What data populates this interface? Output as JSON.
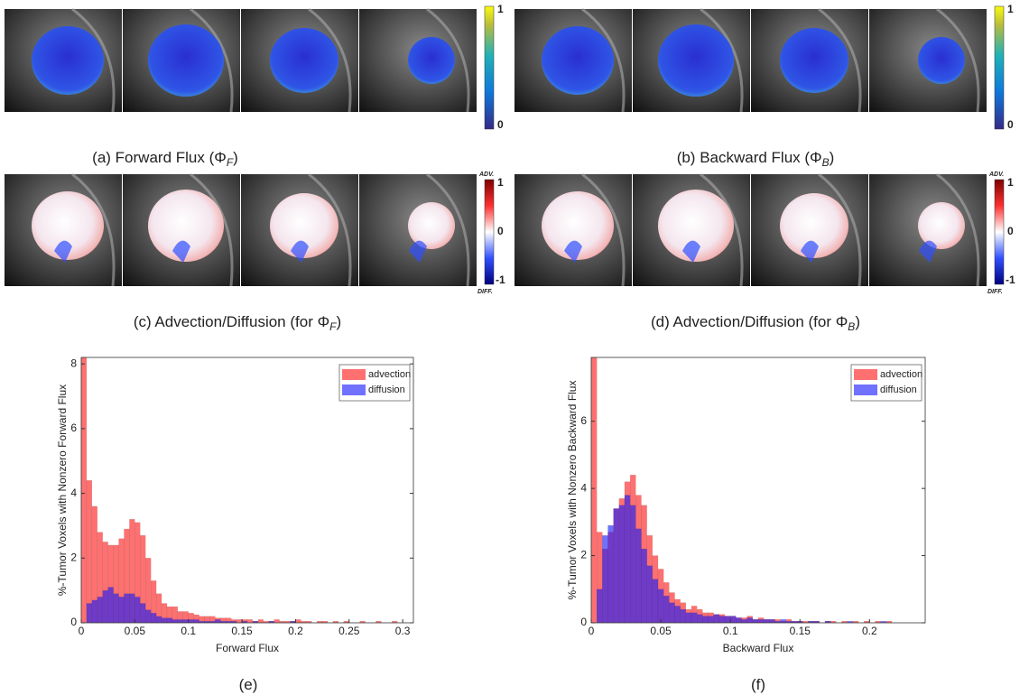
{
  "image_panels": [
    {
      "caption": {
        "main": "(a) Forward Flux (Φ",
        "sub": "F",
        "end": ")"
      },
      "colorbar_labels": [
        "1",
        "0"
      ]
    },
    {
      "caption": {
        "main": "(b) Backward Flux (Φ",
        "sub": "B",
        "end": ")"
      },
      "colorbar_labels": [
        "1",
        "0"
      ]
    },
    {
      "caption": {
        "main": "(c) Advection/Diffusion (for Φ",
        "sub": "F",
        "end": ")"
      },
      "colorbar_labels": [
        "ADV.",
        "1",
        "0",
        "-1",
        "DIFF."
      ]
    },
    {
      "caption": {
        "main": "(d) Advection/Diffusion (for Φ",
        "sub": "B",
        "end": ")"
      },
      "colorbar_labels": [
        "ADV.",
        "1",
        "0",
        "-1",
        "DIFF."
      ]
    }
  ],
  "chart_data": [
    {
      "type": "histogram",
      "caption": "(e)",
      "xlabel": "Forward Flux",
      "ylabel": "%-Tumor Voxels with Nonzero Forward Flux",
      "xlim": [
        0,
        0.31
      ],
      "ylim": [
        0,
        8.2
      ],
      "xticks": [
        0,
        0.05,
        0.1,
        0.15,
        0.2,
        0.25,
        0.3
      ],
      "yticks": [
        0,
        2,
        4,
        6,
        8
      ],
      "legend": "top-right",
      "grid": false,
      "bins": [
        0,
        0.005,
        0.01,
        0.015,
        0.02,
        0.025,
        0.03,
        0.035,
        0.04,
        0.045,
        0.05,
        0.055,
        0.06,
        0.065,
        0.07,
        0.075,
        0.08,
        0.085,
        0.09,
        0.095,
        0.1,
        0.105,
        0.11,
        0.115,
        0.12,
        0.125,
        0.13,
        0.135,
        0.14,
        0.145,
        0.15,
        0.155,
        0.16,
        0.165,
        0.17,
        0.175,
        0.18,
        0.185,
        0.19,
        0.195,
        0.2,
        0.205,
        0.21,
        0.215,
        0.22,
        0.225,
        0.23,
        0.235,
        0.24,
        0.245,
        0.25,
        0.255,
        0.26,
        0.265,
        0.27,
        0.275,
        0.28,
        0.285,
        0.29,
        0.295,
        0.3,
        0.305,
        0.31
      ],
      "series": [
        {
          "name": "advection",
          "color": "#ff1a1a",
          "values": [
            8.2,
            4.4,
            3.6,
            2.8,
            2.5,
            2.4,
            2.4,
            2.6,
            2.9,
            3.2,
            3.1,
            2.7,
            2.0,
            1.3,
            0.9,
            0.6,
            0.5,
            0.5,
            0.35,
            0.35,
            0.3,
            0.25,
            0.2,
            0.2,
            0.2,
            0.15,
            0.15,
            0.15,
            0.1,
            0.1,
            0.1,
            0.1,
            0.05,
            0.1,
            0.05,
            0.05,
            0.1,
            0.05,
            0.05,
            0.05,
            0.1,
            0.05,
            0.05,
            0,
            0.05,
            0.05,
            0,
            0.05,
            0,
            0.05,
            0,
            0,
            0.05,
            0,
            0,
            0.05,
            0,
            0,
            0.05,
            0,
            0,
            0
          ]
        },
        {
          "name": "diffusion",
          "color": "#1a1aff",
          "values": [
            0,
            0.6,
            0.7,
            0.8,
            1.0,
            1.1,
            0.9,
            0.8,
            0.9,
            0.9,
            0.8,
            0.6,
            0.4,
            0.3,
            0.2,
            0.15,
            0.15,
            0.1,
            0.1,
            0.1,
            0.1,
            0.1,
            0.05,
            0.05,
            0.05,
            0.1,
            0.05,
            0.05,
            0.05,
            0,
            0.05,
            0,
            0.05,
            0,
            0,
            0.05,
            0,
            0,
            0,
            0.05,
            0,
            0,
            0,
            0,
            0,
            0,
            0,
            0,
            0,
            0,
            0,
            0,
            0,
            0,
            0,
            0,
            0,
            0,
            0,
            0,
            0,
            0
          ]
        }
      ]
    },
    {
      "type": "histogram",
      "caption": "(f)",
      "xlabel": "Backward Flux",
      "ylabel": "%-Tumor Voxels with Nonzero Backward Flux",
      "xlim": [
        0,
        0.24
      ],
      "ylim": [
        0,
        7.9
      ],
      "xticks": [
        0,
        0.05,
        0.1,
        0.15,
        0.2
      ],
      "yticks": [
        0,
        2,
        4,
        6
      ],
      "legend": "top-right",
      "grid": false,
      "bins": [
        0,
        0.004,
        0.008,
        0.012,
        0.016,
        0.02,
        0.024,
        0.028,
        0.032,
        0.036,
        0.04,
        0.044,
        0.048,
        0.052,
        0.056,
        0.06,
        0.064,
        0.068,
        0.072,
        0.076,
        0.08,
        0.084,
        0.088,
        0.092,
        0.096,
        0.1,
        0.104,
        0.108,
        0.112,
        0.116,
        0.12,
        0.124,
        0.128,
        0.132,
        0.136,
        0.14,
        0.144,
        0.148,
        0.152,
        0.156,
        0.16,
        0.164,
        0.168,
        0.172,
        0.176,
        0.18,
        0.184,
        0.188,
        0.192,
        0.196,
        0.2,
        0.204,
        0.208,
        0.212,
        0.216,
        0.22,
        0.224,
        0.228,
        0.232,
        0.236,
        0.24
      ],
      "series": [
        {
          "name": "advection",
          "color": "#ff1a1a",
          "values": [
            7.9,
            2.7,
            2.2,
            2.7,
            3.4,
            3.7,
            4.2,
            4.4,
            3.8,
            3.5,
            2.6,
            2.0,
            1.6,
            1.2,
            0.9,
            0.7,
            0.6,
            0.4,
            0.5,
            0.4,
            0.3,
            0.3,
            0.25,
            0.25,
            0.2,
            0.2,
            0.15,
            0.15,
            0.2,
            0.1,
            0.15,
            0.1,
            0.1,
            0.1,
            0.05,
            0.1,
            0.05,
            0.05,
            0.05,
            0.05,
            0.05,
            0,
            0.05,
            0.05,
            0,
            0.05,
            0,
            0.05,
            0,
            0.05,
            0,
            0.05,
            0,
            0.05,
            0,
            0,
            0,
            0,
            0,
            0
          ]
        },
        {
          "name": "diffusion",
          "color": "#1a1aff",
          "values": [
            0,
            1.0,
            2.6,
            2.9,
            3.4,
            3.5,
            3.8,
            3.5,
            2.8,
            2.2,
            1.7,
            1.3,
            1.0,
            0.8,
            0.6,
            0.5,
            0.4,
            0.3,
            0.3,
            0.25,
            0.2,
            0.2,
            0.25,
            0.2,
            0.2,
            0.2,
            0.15,
            0.1,
            0.15,
            0.1,
            0.1,
            0.1,
            0.1,
            0.05,
            0.1,
            0.05,
            0.05,
            0.05,
            0,
            0.05,
            0.05,
            0,
            0.05,
            0,
            0,
            0,
            0.05,
            0,
            0,
            0,
            0,
            0,
            0.05,
            0,
            0,
            0,
            0,
            0,
            0,
            0
          ]
        }
      ]
    }
  ]
}
